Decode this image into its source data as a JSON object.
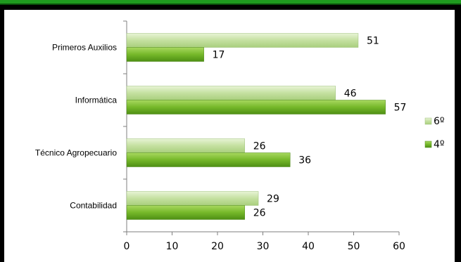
{
  "chart_data": {
    "type": "bar",
    "orientation": "horizontal",
    "categories": [
      "Primeros Auxilios",
      "Informática",
      "Técnico Agropecuario",
      "Contabilidad"
    ],
    "series": [
      {
        "name": "6º",
        "values": [
          51,
          46,
          26,
          29
        ],
        "color": "#c4e0a0"
      },
      {
        "name": "4º",
        "values": [
          17,
          57,
          36,
          26
        ],
        "color": "#76b82a"
      }
    ],
    "xlim": [
      0,
      60
    ],
    "x_ticks": [
      0,
      10,
      20,
      30,
      40,
      50,
      60
    ],
    "grid": false,
    "legend_position": "right"
  },
  "colors": {
    "frame_bg": "#000000",
    "top_accent": "#1f9a1f",
    "plot_bg": "#ffffff",
    "series_light": "#c4e0a0",
    "series_dark": "#76b82a"
  }
}
